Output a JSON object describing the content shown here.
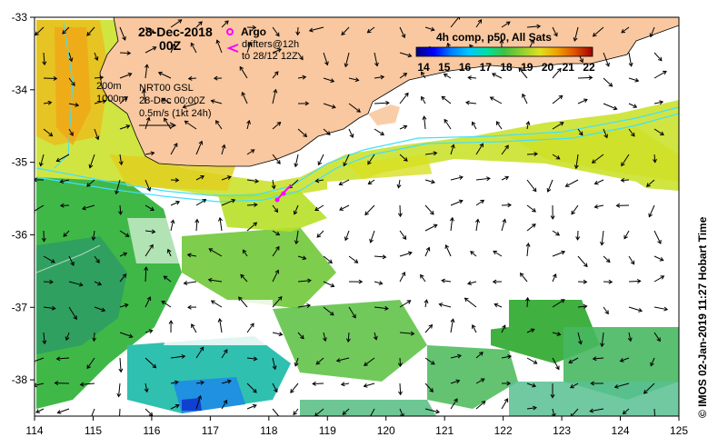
{
  "map": {
    "date_title": "28-Dec-2018",
    "time_title": "00Z",
    "argo_label": "Argo",
    "drifters_line1": "drifters@12h",
    "drifters_line2": "to 28/12 12Z",
    "isobath_1": "200m",
    "isobath_2": "1000m",
    "altimetry_line1": "NRT00 GSL",
    "altimetry_line2": "28-Dec 00:00Z",
    "current_scale": "0.5m/s (1kt 24h)",
    "credit": "© IMOS 02-Jan-2019 11:27 Hobart Time",
    "extent": {
      "lon_min": 114,
      "lon_max": 125,
      "lat_min": -38.5,
      "lat_max": -33
    }
  },
  "axes": {
    "x_ticks": [
      "114",
      "115",
      "116",
      "117",
      "118",
      "119",
      "120",
      "121",
      "122",
      "123",
      "124",
      "125"
    ],
    "y_ticks": [
      "-33",
      "-34",
      "-35",
      "-36",
      "-37",
      "-38"
    ]
  },
  "colorbar": {
    "title": "4h comp, p50, All Sats",
    "tick_labels": [
      "14",
      "15",
      "16",
      "17",
      "18",
      "19",
      "20",
      "21",
      "22"
    ],
    "colors": [
      "#000080",
      "#0000ff",
      "#0080ff",
      "#00c0ff",
      "#00e0a0",
      "#30c040",
      "#80d030",
      "#c0e020",
      "#f0e000",
      "#f0a000",
      "#e05000",
      "#c00000",
      "#800000"
    ]
  },
  "palette": {
    "land": "#f9c8a0",
    "shelf_line": "#40e0ff",
    "argo": "#ff00ff"
  }
}
